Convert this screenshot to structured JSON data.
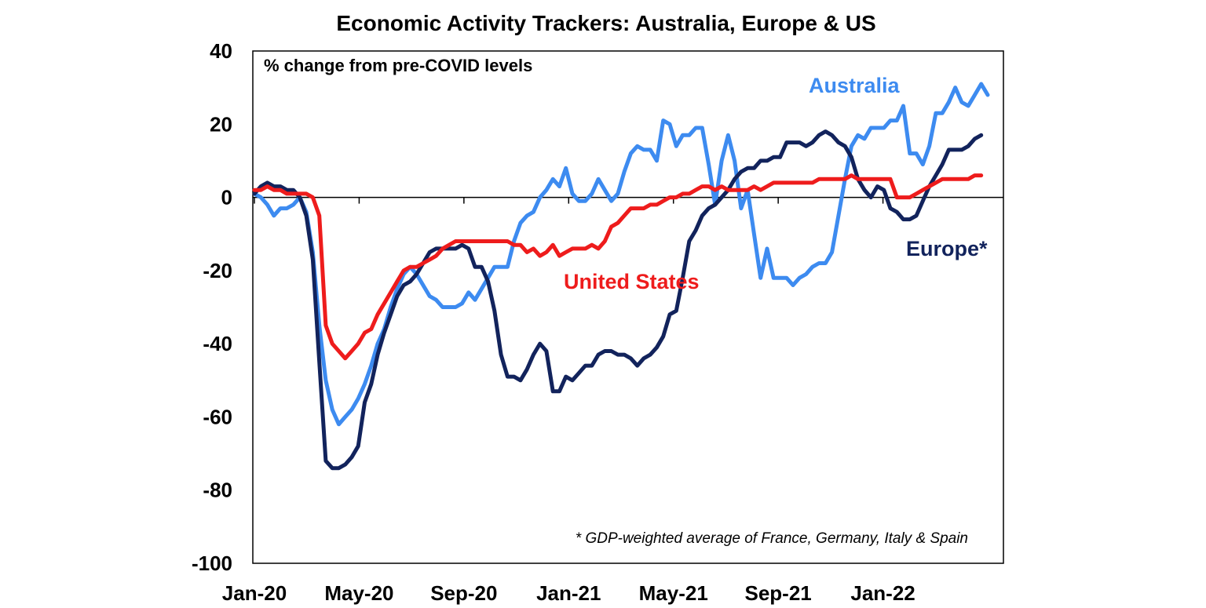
{
  "chart_data": {
    "type": "line",
    "title": "Economic Activity Trackers: Australia, Europe & US",
    "subtitle": "% change from pre-COVID levels",
    "footnote": "* GDP-weighted average of France, Germany, Italy & Spain",
    "ylim": [
      -100,
      40
    ],
    "y_ticks": [
      "40",
      "20",
      "0",
      "-20",
      "-40",
      "-60",
      "-80",
      "-100"
    ],
    "x_tick_labels": [
      "Jan-20",
      "May-20",
      "Sep-20",
      "Jan-21",
      "May-21",
      "Sep-21",
      "Jan-22"
    ],
    "x_start": "Jan-20",
    "x_end": "May-22",
    "zero_line": true,
    "series": [
      {
        "name": "Australia",
        "color": "#3d8bf0",
        "values": [
          1,
          0,
          -2,
          -5,
          -3,
          -3,
          -2,
          0,
          -4,
          -15,
          -35,
          -50,
          -58,
          -62,
          -60,
          -58,
          -55,
          -51,
          -46,
          -40,
          -36,
          -30,
          -25,
          -21,
          -19,
          -21,
          -24,
          -27,
          -28,
          -30,
          -30,
          -30,
          -29,
          -26,
          -28,
          -25,
          -22,
          -19,
          -19,
          -19,
          -12,
          -7,
          -5,
          -4,
          0,
          2,
          5,
          3,
          8,
          1,
          -1,
          -1,
          1,
          5,
          2,
          -1,
          1,
          7,
          12,
          14,
          13,
          13,
          10,
          21,
          20,
          14,
          17,
          17,
          19,
          19,
          9,
          -2,
          10,
          17,
          10,
          -3,
          2,
          -10,
          -22,
          -14,
          -22,
          -22,
          -22,
          -24,
          -22,
          -21,
          -19,
          -18,
          -18,
          -15,
          -5,
          5,
          14,
          17,
          16,
          19,
          19,
          19,
          21,
          21,
          25,
          12,
          12,
          9,
          14,
          23,
          23,
          26,
          30,
          26,
          25,
          28,
          31,
          28
        ]
      },
      {
        "name": "Europe*",
        "color": "#12235c",
        "values": [
          1,
          3,
          4,
          3,
          3,
          2,
          2,
          0,
          -5,
          -17,
          -45,
          -72,
          -74,
          -74,
          -73,
          -71,
          -68,
          -56,
          -51,
          -43,
          -37,
          -32,
          -27,
          -24,
          -23,
          -21,
          -18,
          -15,
          -14,
          -14,
          -14,
          -14,
          -13,
          -14,
          -19,
          -19,
          -23,
          -31,
          -43,
          -49,
          -49,
          -50,
          -47,
          -43,
          -40,
          -42,
          -53,
          -53,
          -49,
          -50,
          -48,
          -46,
          -46,
          -43,
          -42,
          -42,
          -43,
          -43,
          -44,
          -46,
          -44,
          -43,
          -41,
          -38,
          -32,
          -31,
          -22,
          -12,
          -9,
          -5,
          -3,
          -2,
          0,
          2,
          5,
          7,
          8,
          8,
          10,
          10,
          11,
          11,
          15,
          15,
          15,
          14,
          15,
          17,
          18,
          17,
          15,
          14,
          11,
          5,
          2,
          0,
          3,
          2,
          -3,
          -4,
          -6,
          -6,
          -5,
          -1,
          3,
          6,
          9,
          13,
          13,
          13,
          14,
          16,
          17
        ]
      },
      {
        "name": "United States",
        "color": "#ee1c1c",
        "values": [
          2,
          2,
          3,
          2,
          2,
          1,
          1,
          1,
          1,
          0,
          -5,
          -35,
          -40,
          -42,
          -44,
          -42,
          -40,
          -37,
          -36,
          -32,
          -29,
          -26,
          -23,
          -20,
          -19,
          -19,
          -18,
          -17,
          -16,
          -14,
          -13,
          -12,
          -12,
          -12,
          -12,
          -12,
          -12,
          -12,
          -12,
          -12,
          -13,
          -13,
          -15,
          -14,
          -16,
          -15,
          -13,
          -16,
          -15,
          -14,
          -14,
          -14,
          -13,
          -14,
          -12,
          -8,
          -7,
          -5,
          -3,
          -3,
          -3,
          -2,
          -2,
          -1,
          0,
          0,
          1,
          1,
          2,
          3,
          3,
          2,
          3,
          2,
          2,
          2,
          2,
          3,
          2,
          3,
          4,
          4,
          4,
          4,
          4,
          4,
          4,
          5,
          5,
          5,
          5,
          5,
          6,
          5,
          5,
          5,
          5,
          5,
          5,
          0,
          0,
          0,
          1,
          2,
          3,
          4,
          5,
          5,
          5,
          5,
          5,
          6,
          6
        ]
      }
    ]
  }
}
